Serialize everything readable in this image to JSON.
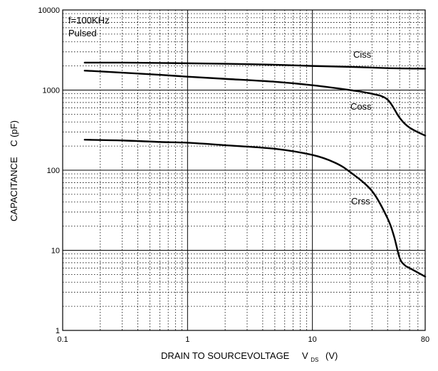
{
  "chart_data": {
    "type": "line",
    "title": "",
    "xlabel": "DRAIN TO SOURCEVOLTAGE",
    "xlabel_symbol": "V",
    "xlabel_subscript": "DS",
    "xlabel_unit": "(V)",
    "ylabel": "CAPACITANCE    C (pF)",
    "x_scale": "log",
    "y_scale": "log",
    "xlim": [
      0.1,
      80
    ],
    "ylim": [
      1,
      10000
    ],
    "x_ticks": [
      "0.1",
      "1",
      "10",
      "80"
    ],
    "y_ticks": [
      "1",
      "10",
      "100",
      "1000",
      "10000"
    ],
    "grid": true,
    "annotations": [
      "f=100KHz",
      "Pulsed"
    ],
    "series": [
      {
        "name": "Ciss",
        "x": [
          0.15,
          0.3,
          0.6,
          1,
          2,
          5,
          10,
          20,
          40,
          80
        ],
        "y": [
          2200,
          2200,
          2180,
          2160,
          2130,
          2070,
          2000,
          1950,
          1880,
          1850
        ]
      },
      {
        "name": "Coss",
        "x": [
          0.15,
          0.3,
          0.6,
          1,
          2,
          5,
          10,
          20,
          30,
          40,
          50,
          60,
          80
        ],
        "y": [
          1750,
          1650,
          1550,
          1470,
          1380,
          1270,
          1150,
          1000,
          900,
          760,
          450,
          340,
          270
        ]
      },
      {
        "name": "Crss",
        "x": [
          0.15,
          0.3,
          0.6,
          1,
          2,
          5,
          10,
          15,
          20,
          30,
          40,
          45,
          50,
          55,
          60,
          80
        ],
        "y": [
          240,
          235,
          225,
          220,
          205,
          185,
          155,
          125,
          95,
          55,
          25,
          15,
          8,
          6.5,
          6,
          4.7
        ]
      }
    ]
  }
}
